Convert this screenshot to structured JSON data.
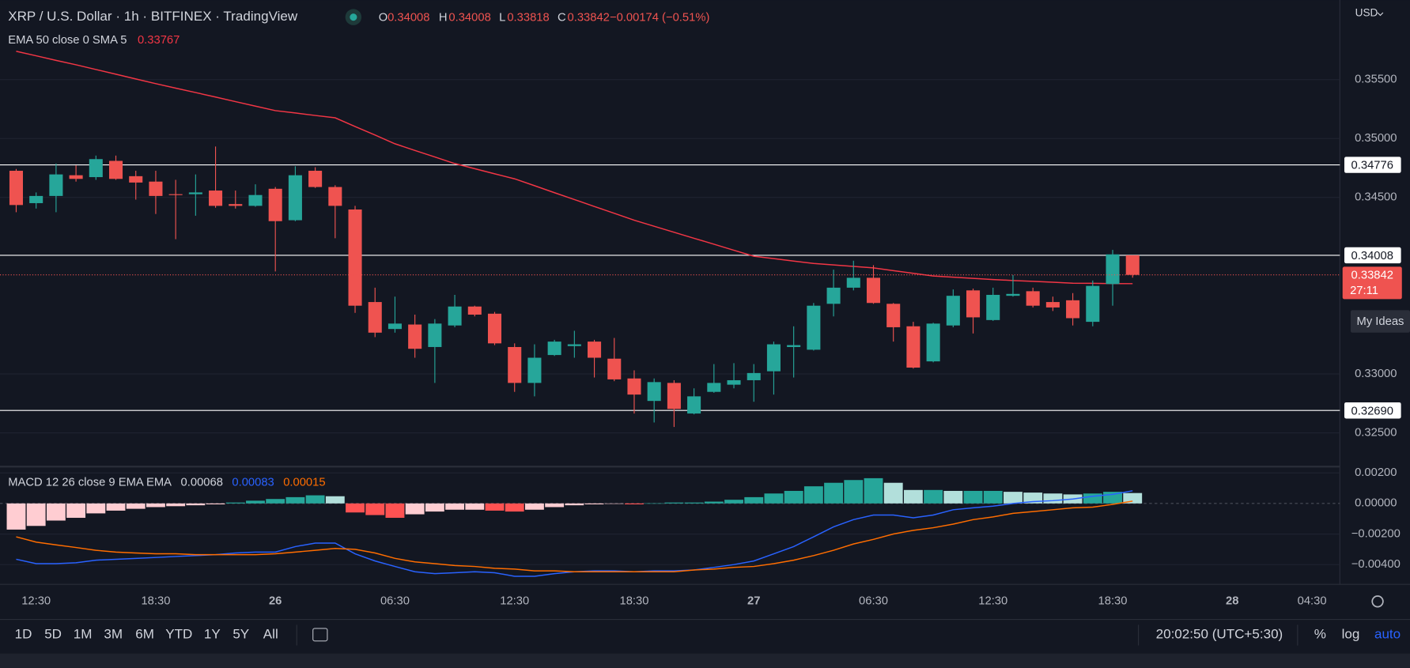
{
  "header": {
    "currency": "USD",
    "ohlc_letters": [
      "O",
      "H",
      "L",
      "C"
    ],
    "change": "−0.00174 (−0.51%)",
    "countdown": "27:11",
    "my_ideas": "My Ideas"
  },
  "toolbar": {
    "periods": [
      "1D",
      "5D",
      "1M",
      "3M",
      "6M",
      "YTD",
      "1Y",
      "5Y",
      "All"
    ],
    "clock": "20:02:50 (UTC+5:30)",
    "percent": "%",
    "log": "log",
    "auto": "auto"
  },
  "chart_data": [
    {
      "type": "candlestick",
      "title": "XRP / U.S. Dollar · 1h · BITFINEX · TradingView",
      "up_color": "#26a69a",
      "down_color": "#ef5350",
      "grid": true,
      "categories": [
        null,
        "12:30",
        null,
        null,
        null,
        null,
        null,
        "18:30",
        null,
        null,
        null,
        null,
        null,
        "26",
        null,
        null,
        null,
        null,
        null,
        "06:30",
        null,
        null,
        null,
        null,
        null,
        "12:30",
        null,
        null,
        null,
        null,
        null,
        "18:30",
        null,
        null,
        null,
        null,
        null,
        "27",
        null,
        null,
        null,
        null,
        null,
        "06:30",
        null,
        null,
        null,
        null,
        null,
        "12:30",
        null,
        null,
        null,
        null,
        null,
        "18:30",
        null,
        null,
        null,
        null,
        null,
        "28",
        null,
        null,
        null,
        "04:30"
      ],
      "open": [
        0.34726,
        0.34451,
        0.34512,
        0.34688,
        0.34672,
        0.3481,
        0.3468,
        0.34634,
        0.34527,
        0.34527,
        0.34558,
        0.34443,
        0.34428,
        0.34573,
        0.34306,
        0.34726,
        0.34588,
        0.34397,
        0.33611,
        0.33382,
        0.3342,
        0.33229,
        0.33412,
        0.33573,
        0.33512,
        0.33229,
        0.32924,
        0.33161,
        0.33237,
        0.33275,
        0.3313,
        0.32962,
        0.32771,
        0.32924,
        0.32664,
        0.32848,
        0.32909,
        0.32947,
        0.33023,
        0.33229,
        0.33206,
        0.33596,
        0.33733,
        0.33817,
        0.33596,
        0.33405,
        0.33107,
        0.33412,
        0.3371,
        0.33458,
        0.33664,
        0.33703,
        0.33611,
        0.33626,
        0.33443,
        0.33764,
        0.34008,
        null,
        null,
        null,
        null,
        null,
        null,
        null,
        null,
        null
      ],
      "high": [
        0.34741,
        0.34542,
        0.34787,
        0.34772,
        0.34855,
        0.34855,
        0.34726,
        0.34726,
        0.34649,
        0.34695,
        0.34932,
        0.34558,
        0.34611,
        0.34588,
        0.34764,
        0.34756,
        0.34603,
        0.34428,
        0.33733,
        0.33657,
        0.33504,
        0.33466,
        0.33672,
        0.3358,
        0.33527,
        0.3326,
        0.33252,
        0.3329,
        0.33367,
        0.3329,
        0.33306,
        0.33031,
        0.32962,
        0.32947,
        0.32878,
        0.33084,
        0.33092,
        0.33084,
        0.33275,
        0.33405,
        0.33603,
        0.33886,
        0.33962,
        0.33924,
        0.33603,
        0.33443,
        0.33435,
        0.33718,
        0.33725,
        0.33733,
        0.3384,
        0.33733,
        0.33657,
        0.33687,
        0.33794,
        0.34054,
        0.34008,
        null,
        null,
        null,
        null,
        null,
        null,
        null,
        null,
        null
      ],
      "low": [
        0.34374,
        0.34405,
        0.34374,
        0.34634,
        0.34649,
        0.34649,
        0.34481,
        0.34359,
        0.34145,
        0.34344,
        0.34412,
        0.34405,
        0.3442,
        0.33871,
        0.34298,
        0.3458,
        0.34153,
        0.33519,
        0.33313,
        0.33351,
        0.33138,
        0.32924,
        0.33397,
        0.33489,
        0.33245,
        0.32848,
        0.3281,
        0.33153,
        0.33138,
        0.3297,
        0.32939,
        0.32664,
        0.32588,
        0.3255,
        0.32657,
        0.3284,
        0.32878,
        0.32764,
        0.32825,
        0.3297,
        0.33199,
        0.33489,
        0.3371,
        0.33596,
        0.33275,
        0.33046,
        0.33099,
        0.33397,
        0.33344,
        0.33451,
        0.33657,
        0.33565,
        0.33535,
        0.33412,
        0.33405,
        0.3358,
        0.33818,
        null,
        null,
        null,
        null,
        null,
        null,
        null,
        null,
        null
      ],
      "close": [
        0.34435,
        0.34512,
        0.34695,
        0.34657,
        0.34825,
        0.34657,
        0.34626,
        0.34512,
        0.3452,
        0.34542,
        0.34428,
        0.34428,
        0.3452,
        0.34298,
        0.34688,
        0.34588,
        0.34428,
        0.3358,
        0.33351,
        0.33428,
        0.33214,
        0.33428,
        0.33573,
        0.33504,
        0.3326,
        0.32924,
        0.33138,
        0.33275,
        0.33252,
        0.33138,
        0.32954,
        0.32825,
        0.32931,
        0.32703,
        0.3281,
        0.32924,
        0.32947,
        0.33008,
        0.33252,
        0.33245,
        0.3358,
        0.33733,
        0.33817,
        0.33603,
        0.33397,
        0.33054,
        0.33428,
        0.33664,
        0.33481,
        0.33672,
        0.3368,
        0.3358,
        0.33565,
        0.33474,
        0.33748,
        0.34016,
        0.33842,
        null,
        null,
        null,
        null,
        null,
        null,
        null,
        null,
        null
      ],
      "indicators": [
        {
          "name": "EMA 50 close 0 SMA 5",
          "color": "#f23645",
          "values": [
            0.35741,
            0.35703,
            0.35664,
            0.35626,
            0.35586,
            0.35546,
            0.35506,
            0.35466,
            0.35428,
            0.3539,
            0.35352,
            0.35313,
            0.35275,
            0.35237,
            0.35217,
            0.35196,
            0.35176,
            0.35102,
            0.35029,
            0.34955,
            0.34899,
            0.34843,
            0.34787,
            0.34744,
            0.347,
            0.34657,
            0.34599,
            0.3454,
            0.34482,
            0.34423,
            0.34365,
            0.34306,
            0.34255,
            0.34204,
            0.34153,
            0.34102,
            0.34051,
            0.34,
            0.3398,
            0.33959,
            0.33939,
            0.33926,
            0.33914,
            0.33901,
            0.33878,
            0.33855,
            0.33832,
            0.33822,
            0.33812,
            0.33802,
            0.33794,
            0.33787,
            0.33779,
            0.33771,
            0.3377,
            0.33768,
            0.33767,
            null,
            null,
            null,
            null,
            null,
            null,
            null,
            null,
            null
          ]
        }
      ],
      "levels": [
        0.34776,
        0.34008,
        {
          "value": 0.3269,
          "label": "0.32690"
        }
      ],
      "ylim": [
        0.32221,
        0.36176
      ],
      "yticks": [
        {
          "value": 0.325,
          "label": "0.32500"
        },
        {
          "value": 0.33,
          "label": "0.33000"
        },
        {
          "value": 0.345,
          "label": "0.34500"
        },
        {
          "value": 0.35,
          "label": "0.35000"
        },
        {
          "value": 0.355,
          "label": "0.35500"
        }
      ]
    },
    {
      "type": "macd",
      "title": "MACD 12 26 close 9 EMA EMA",
      "histogram_colors": [
        "#26a69a",
        "#b2dfdb",
        "#ffcdd2",
        "#ff5252"
      ],
      "histogram": [
        -0.00171,
        -0.00147,
        -0.00112,
        -0.00094,
        -0.00065,
        -0.00047,
        -0.00035,
        -0.00024,
        -0.00018,
        -0.00012,
        -6e-05,
        6e-05,
        0.00018,
        0.00029,
        0.00041,
        0.00053,
        0.00047,
        -0.00059,
        -0.00076,
        -0.00094,
        -0.00071,
        -0.00053,
        -0.00041,
        -0.00041,
        -0.00047,
        -0.00053,
        -0.00041,
        -0.00024,
        -0.00012,
        -6e-05,
        -2e-05,
        -6e-05,
        1e-05,
        6e-05,
        6e-05,
        0.00012,
        0.00024,
        0.00041,
        0.00065,
        0.00082,
        0.00112,
        0.00135,
        0.00153,
        0.00165,
        0.00135,
        0.00088,
        0.00088,
        0.00082,
        0.00082,
        0.00082,
        0.00076,
        0.00071,
        0.00065,
        0.00059,
        0.00065,
        0.00076,
        0.00068,
        null,
        null,
        null,
        null,
        null,
        null,
        null,
        null,
        null
      ],
      "series": [
        {
          "color": "#2962ff",
          "values": [
            -0.00365,
            -0.00394,
            -0.00394,
            -0.00388,
            -0.00371,
            -0.00365,
            -0.00359,
            -0.00353,
            -0.00347,
            -0.00341,
            -0.00335,
            -0.00324,
            -0.00318,
            -0.00318,
            -0.00282,
            -0.00259,
            -0.00259,
            -0.00329,
            -0.00376,
            -0.00412,
            -0.00447,
            -0.00459,
            -0.00453,
            -0.00447,
            -0.00453,
            -0.00476,
            -0.00476,
            -0.00459,
            -0.00447,
            -0.00441,
            -0.00441,
            -0.00447,
            -0.00441,
            -0.00441,
            -0.00435,
            -0.00418,
            -0.004,
            -0.00376,
            -0.00329,
            -0.00282,
            -0.00218,
            -0.00153,
            -0.00106,
            -0.00076,
            -0.00076,
            -0.00094,
            -0.00076,
            -0.00041,
            -0.00029,
            -0.00018,
            0.0,
            0.00012,
            0.00018,
            0.00029,
            0.00047,
            0.00059,
            0.00083,
            null,
            null,
            null,
            null,
            null,
            null,
            null,
            null,
            null
          ]
        },
        {
          "color": "#ff6d00",
          "values": [
            -0.00218,
            -0.00253,
            -0.00271,
            -0.00288,
            -0.00306,
            -0.00318,
            -0.00324,
            -0.00329,
            -0.00329,
            -0.00335,
            -0.00335,
            -0.00335,
            -0.00335,
            -0.00329,
            -0.00318,
            -0.00306,
            -0.00294,
            -0.003,
            -0.00324,
            -0.00359,
            -0.00382,
            -0.00394,
            -0.00406,
            -0.00412,
            -0.00424,
            -0.00429,
            -0.00441,
            -0.00441,
            -0.00447,
            -0.00447,
            -0.00447,
            -0.00447,
            -0.00447,
            -0.00447,
            -0.00435,
            -0.00429,
            -0.00418,
            -0.00412,
            -0.00394,
            -0.00371,
            -0.00341,
            -0.00306,
            -0.00265,
            -0.00235,
            -0.002,
            -0.00176,
            -0.00159,
            -0.00135,
            -0.00106,
            -0.00088,
            -0.00065,
            -0.00053,
            -0.00041,
            -0.00029,
            -0.00024,
            -6e-05,
            0.00015,
            null,
            null,
            null,
            null,
            null,
            null,
            null,
            null,
            null
          ]
        }
      ],
      "ylim": [
        -0.00529,
        0.00235
      ],
      "yticks": [
        {
          "value": -0.004,
          "label": "−0.00400"
        },
        {
          "value": -0.002,
          "label": "−0.00200"
        },
        {
          "value": 0,
          "label": "0.00000"
        },
        {
          "value": 0.002,
          "label": "0.00200"
        }
      ]
    }
  ]
}
